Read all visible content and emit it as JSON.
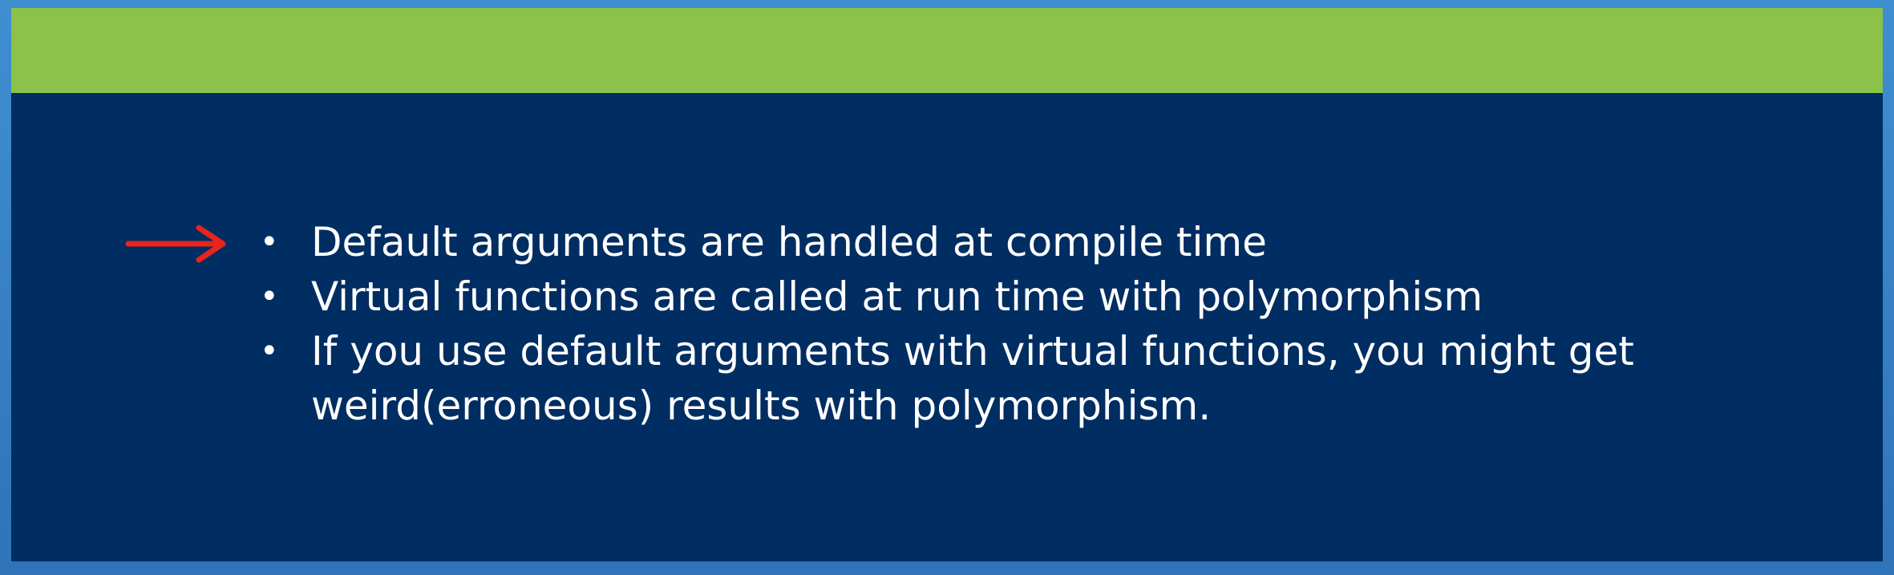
{
  "slide": {
    "bullets": [
      "Default arguments are handled at compile time",
      "Virtual functions are called at run time with polymorphism",
      "If you use default arguments with virtual functions, you might get weird(erroneous) results with polymorphism."
    ],
    "colors": {
      "background": "#002d62",
      "accent_band": "#8cc14a",
      "text": "#ffffff",
      "arrow": "#e8241c"
    },
    "pointer": {
      "icon": "red-arrow-icon",
      "points_to_bullet": 1
    }
  }
}
